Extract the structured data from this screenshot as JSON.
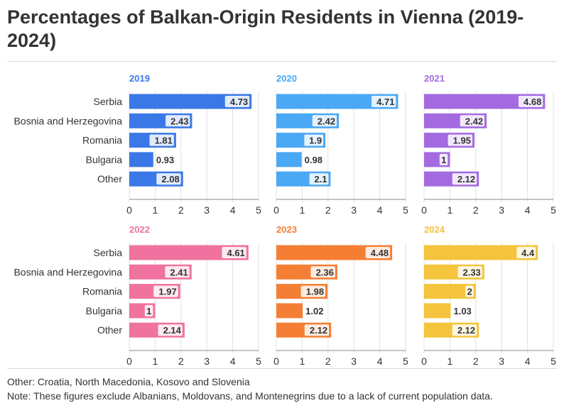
{
  "title": "Percentages of Balkan-Origin Residents in Vienna (2019-2024)",
  "notes": [
    "Other: Croatia, North Macedonia, Kosovo and Slovenia",
    "Note: These figures exclude Albanians, Moldovans, and Montenegrins due to a lack of current population data."
  ],
  "chart_data": {
    "type": "bar",
    "orientation": "horizontal",
    "categories": [
      "Serbia",
      "Bosnia and Herzegovina",
      "Romania",
      "Bulgaria",
      "Other"
    ],
    "xlim": [
      0,
      5
    ],
    "xticks": [
      0,
      1,
      2,
      3,
      4,
      5
    ],
    "grid": true,
    "panels": [
      {
        "title": "2019",
        "color": "#3b78e7",
        "values": [
          4.73,
          2.43,
          1.81,
          0.93,
          2.08
        ]
      },
      {
        "title": "2020",
        "color": "#4aa8f5",
        "values": [
          4.71,
          2.42,
          1.9,
          0.98,
          2.1
        ]
      },
      {
        "title": "2021",
        "color": "#a46ae0",
        "values": [
          4.68,
          2.42,
          1.95,
          1,
          2.12
        ]
      },
      {
        "title": "2022",
        "color": "#f0729f",
        "values": [
          4.61,
          2.41,
          1.97,
          1,
          2.14
        ]
      },
      {
        "title": "2023",
        "color": "#f47f34",
        "values": [
          4.48,
          2.36,
          1.98,
          1.02,
          2.12
        ]
      },
      {
        "title": "2024",
        "color": "#f3c43c",
        "values": [
          4.4,
          2.33,
          2,
          1.03,
          2.12
        ]
      }
    ]
  }
}
